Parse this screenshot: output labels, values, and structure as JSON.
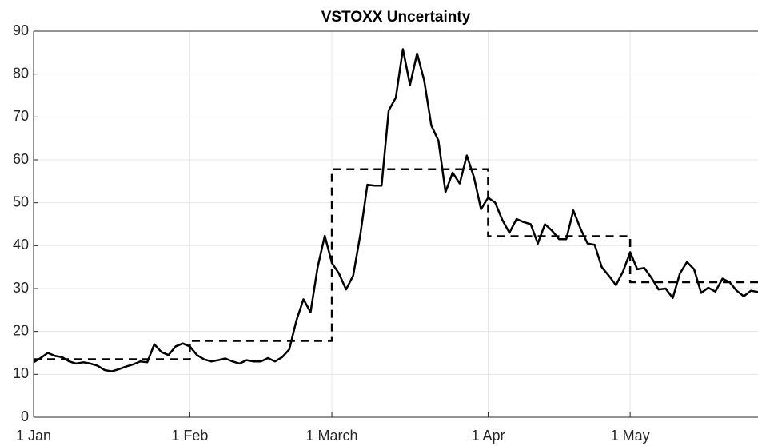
{
  "chart_data": {
    "type": "line",
    "title": "VSTOXX Uncertainty",
    "xlim": [
      0,
      102
    ],
    "ylim": [
      0,
      90
    ],
    "xticks": [
      {
        "value": 0,
        "label": "1 Jan"
      },
      {
        "value": 22,
        "label": "1 Feb"
      },
      {
        "value": 42,
        "label": "1 March"
      },
      {
        "value": 64,
        "label": "1 Apr"
      },
      {
        "value": 84,
        "label": "1 May"
      }
    ],
    "yticks": [
      0,
      10,
      20,
      30,
      40,
      50,
      60,
      70,
      80,
      90
    ],
    "grid": true,
    "series": [
      {
        "color": "#000000",
        "line_style": "solid",
        "x": [
          0,
          1,
          2,
          3,
          4,
          5,
          6,
          7,
          8,
          9,
          10,
          11,
          12,
          13,
          14,
          15,
          16,
          17,
          18,
          19,
          20,
          21,
          22,
          23,
          24,
          25,
          26,
          27,
          28,
          29,
          30,
          31,
          32,
          33,
          34,
          35,
          36,
          37,
          38,
          39,
          40,
          41,
          42,
          43,
          44,
          45,
          46,
          47,
          48,
          49,
          50,
          51,
          52,
          53,
          54,
          55,
          56,
          57,
          58,
          59,
          60,
          61,
          62,
          63,
          64,
          65,
          66,
          67,
          68,
          69,
          70,
          71,
          72,
          73,
          74,
          75,
          76,
          77,
          78,
          79,
          80,
          81,
          82,
          83,
          84,
          85,
          86,
          87,
          88,
          89,
          90,
          91,
          92,
          93,
          94,
          95,
          96,
          97,
          98,
          99,
          100,
          101,
          102
        ],
        "values": [
          12.8,
          13.8,
          15.0,
          14.3,
          14.0,
          13.0,
          12.5,
          12.8,
          12.5,
          12.0,
          11.0,
          10.7,
          11.2,
          11.8,
          12.3,
          13.0,
          12.8,
          17.0,
          15.2,
          14.5,
          16.5,
          17.2,
          16.5,
          14.5,
          13.5,
          13.0,
          13.3,
          13.7,
          13.0,
          12.5,
          13.3,
          13.0,
          13.0,
          13.8,
          13.0,
          14.0,
          15.8,
          22.5,
          27.5,
          24.5,
          35.0,
          42.3,
          36.0,
          33.5,
          29.8,
          33.0,
          42.5,
          54.2,
          54.0,
          54.0,
          71.5,
          74.5,
          85.8,
          77.5,
          84.8,
          78.5,
          68.0,
          64.5,
          52.5,
          57.0,
          54.5,
          61.0,
          56.0,
          48.5,
          51.2,
          50.0,
          46.0,
          43.0,
          46.2,
          45.5,
          45.0,
          40.5,
          45.0,
          43.5,
          41.5,
          41.5,
          48.2,
          44.0,
          40.5,
          40.2,
          35.0,
          33.0,
          30.8,
          34.0,
          38.5,
          34.5,
          34.8,
          32.5,
          29.8,
          30.0,
          27.8,
          33.5,
          36.2,
          34.5,
          29.0,
          30.2,
          29.3,
          32.3,
          31.5,
          29.5,
          28.2,
          29.5,
          29.2
        ]
      },
      {
        "color": "#000000",
        "line_style": "dashed",
        "x": [
          0,
          22,
          22,
          42,
          42,
          64,
          64,
          84,
          84,
          102
        ],
        "values": [
          13.5,
          13.5,
          17.8,
          17.8,
          57.8,
          57.8,
          42.2,
          42.2,
          31.5,
          31.5
        ]
      }
    ]
  }
}
